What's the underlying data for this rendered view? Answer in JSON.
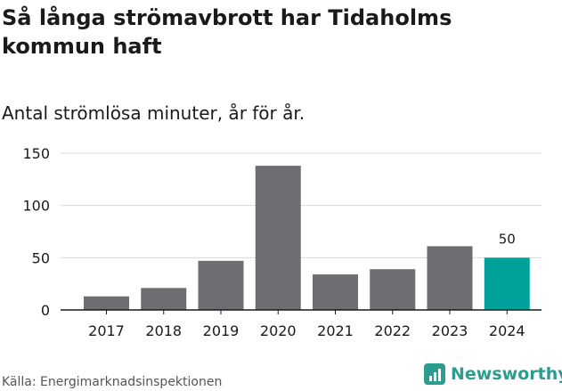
{
  "title": "Så långa strömavbrott har Tidaholms kommun haft",
  "subtitle": "Antal strömlösa minuter, år för år.",
  "source": "Källa: Energimarknadsinspektionen",
  "brand": {
    "name": "Newsworthy",
    "icon": "bar-chart-icon",
    "color": "#2a9d8f"
  },
  "colors": {
    "bar": "#6e6d71",
    "highlight": "#00a19a",
    "grid": "#d9d9d9",
    "axis": "#1a1a1a"
  },
  "chart_data": {
    "type": "bar",
    "title": "Så långa strömavbrott har Tidaholms kommun haft",
    "subtitle": "Antal strömlösa minuter, år för år.",
    "xlabel": "",
    "ylabel": "",
    "categories": [
      "2017",
      "2018",
      "2019",
      "2020",
      "2021",
      "2022",
      "2023",
      "2024"
    ],
    "values": [
      13,
      21,
      47,
      138,
      34,
      39,
      61,
      50
    ],
    "highlight_index": 7,
    "data_labels": [
      {
        "index": 7,
        "text": "50"
      }
    ],
    "yticks": [
      0,
      50,
      100,
      150
    ],
    "ylim": [
      0,
      150
    ],
    "grid": true
  }
}
